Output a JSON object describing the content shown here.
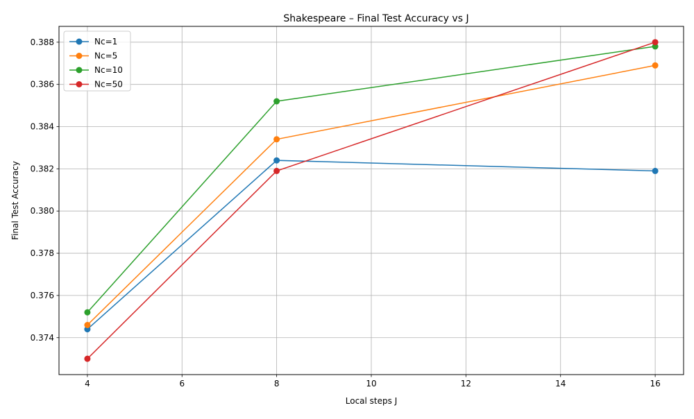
{
  "chart_data": {
    "type": "line",
    "title": "Shakespeare – Final Test Accuracy vs J",
    "xlabel": "Local steps J",
    "ylabel": "Final Test Accuracy",
    "x": [
      4,
      8,
      16
    ],
    "xlim": [
      3.4,
      16.6
    ],
    "ylim": [
      0.37225,
      0.38875
    ],
    "xticks": [
      4,
      6,
      8,
      10,
      12,
      14,
      16
    ],
    "yticks": [
      0.374,
      0.376,
      0.378,
      0.38,
      0.382,
      0.384,
      0.386,
      0.388
    ],
    "ytick_labels": [
      "0.374",
      "0.376",
      "0.378",
      "0.380",
      "0.382",
      "0.384",
      "0.386",
      "0.388"
    ],
    "grid": true,
    "legend_position": "upper left",
    "series": [
      {
        "name": "Nc=1",
        "color": "#1f77b4",
        "values": [
          0.3744,
          0.3824,
          0.3819
        ]
      },
      {
        "name": "Nc=5",
        "color": "#ff7f0e",
        "values": [
          0.3746,
          0.3834,
          0.3869
        ]
      },
      {
        "name": "Nc=10",
        "color": "#2ca02c",
        "values": [
          0.3752,
          0.3852,
          0.3878
        ]
      },
      {
        "name": "Nc=50",
        "color": "#d62728",
        "values": [
          0.373,
          0.3819,
          0.388
        ]
      }
    ]
  }
}
